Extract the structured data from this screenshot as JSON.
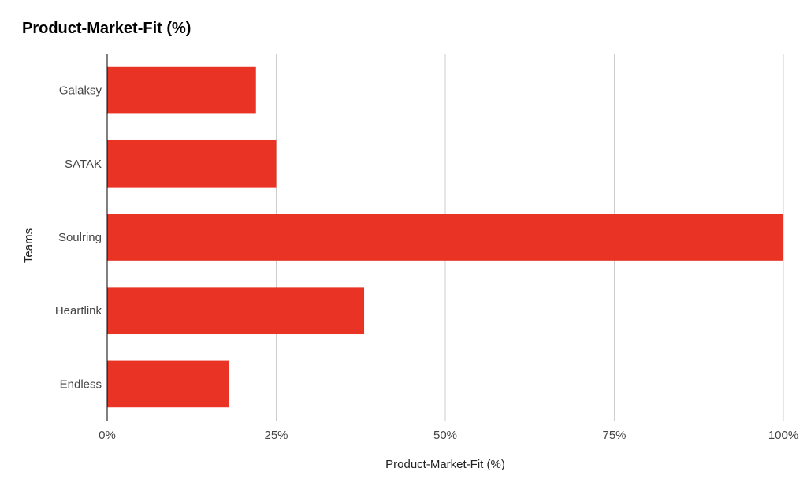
{
  "chart_data": {
    "type": "bar",
    "orientation": "horizontal",
    "title": "Product-Market-Fit (%)",
    "xlabel": "Product-Market-Fit (%)",
    "ylabel": "Teams",
    "categories": [
      "Galaksy",
      "SATAK",
      "Soulring",
      "Heartlink",
      "Endless"
    ],
    "values": [
      22,
      25,
      100,
      38,
      18
    ],
    "xlim": [
      0,
      100
    ],
    "xticks": [
      0,
      25,
      50,
      75,
      100
    ],
    "xtick_labels": [
      "0%",
      "25%",
      "50%",
      "75%",
      "100%"
    ],
    "grid": true,
    "legend": "none",
    "bar_color": "#e93324",
    "grid_color": "#cccccc",
    "axis_color": "#000000"
  }
}
